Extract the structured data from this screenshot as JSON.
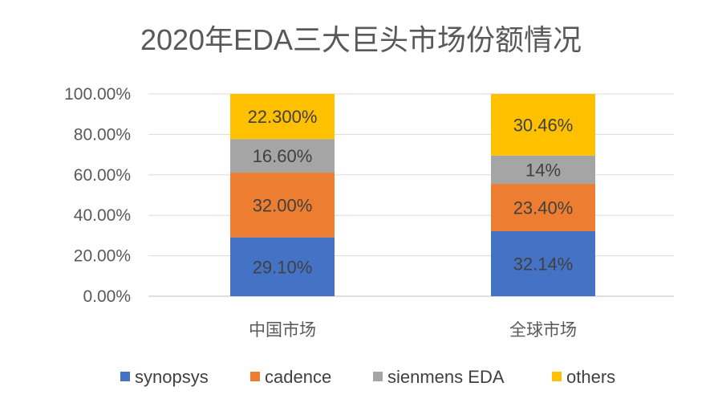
{
  "chart_data": {
    "type": "bar",
    "stacked": true,
    "title": "2020年EDA三大巨头市场份额情况",
    "categories": [
      "中国市场",
      "全球市场"
    ],
    "ylim": [
      0,
      100
    ],
    "yticks": [
      "0.00%",
      "20.00%",
      "40.00%",
      "60.00%",
      "80.00%",
      "100.00%"
    ],
    "grid": true,
    "legend_position": "bottom",
    "series": [
      {
        "name": "synopsys",
        "color": "#4472C4",
        "values": [
          29.1,
          32.14
        ],
        "labels": [
          "29.10%",
          "32.14%"
        ]
      },
      {
        "name": "cadence",
        "color": "#ED7D31",
        "values": [
          32.0,
          23.4
        ],
        "labels": [
          "32.00%",
          "23.40%"
        ]
      },
      {
        "name": "sienmens EDA",
        "color": "#A5A5A5",
        "values": [
          16.6,
          14
        ],
        "labels": [
          "16.60%",
          "14%"
        ]
      },
      {
        "name": "others",
        "color": "#FFC000",
        "values": [
          22.3,
          30.46
        ],
        "labels": [
          "22.300%",
          "30.46%"
        ]
      }
    ]
  }
}
